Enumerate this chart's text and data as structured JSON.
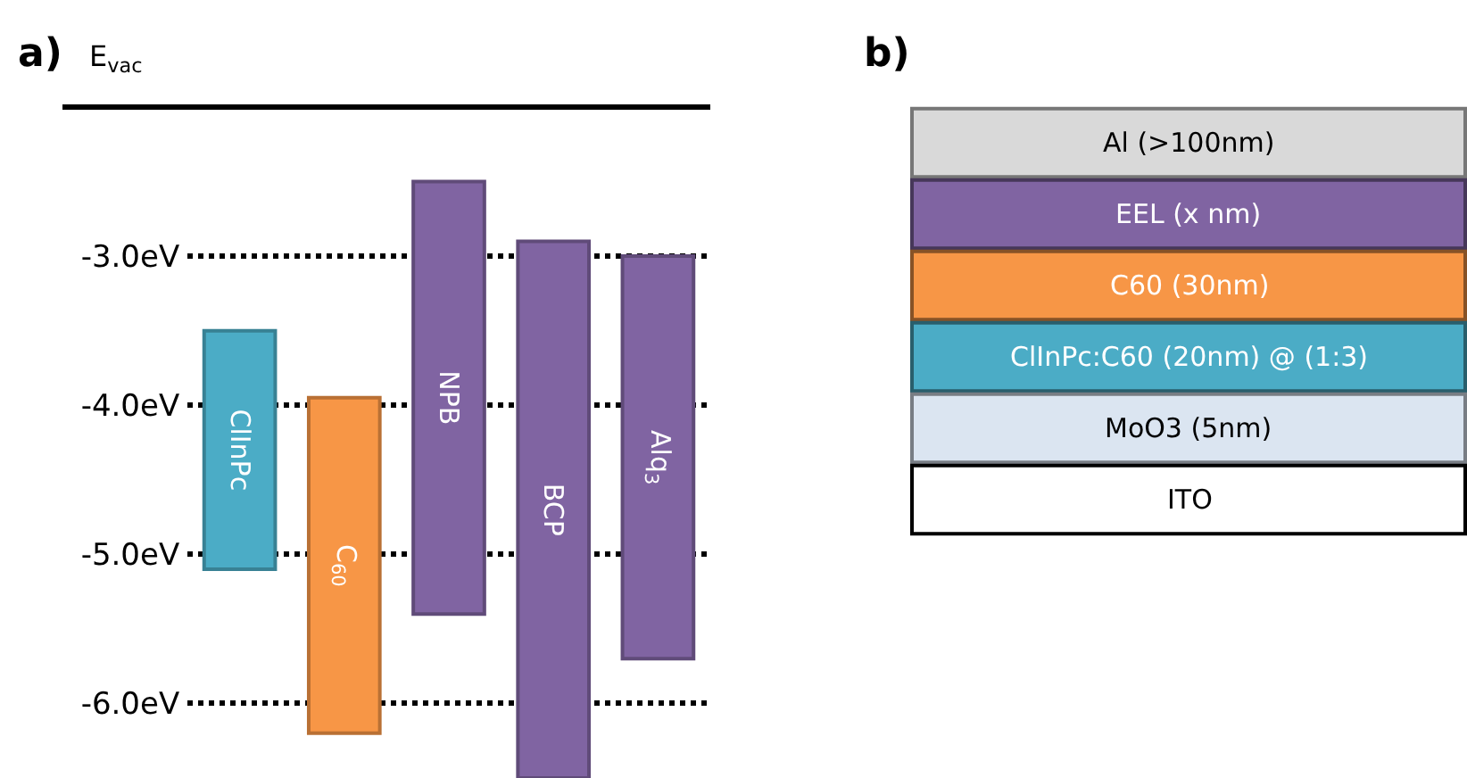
{
  "chart_data": [
    {
      "type": "bar",
      "title": "a)",
      "annotations": [
        "E$_{vac}$"
      ],
      "categories": [
        "ClInPc",
        "C$_{60}$",
        "NPB",
        "BCP",
        "Alq$_{3}$"
      ],
      "base": [
        -5.1,
        -6.2,
        -5.4,
        -6.5,
        -5.7
      ],
      "values": [
        1.6,
        2.25,
        2.9,
        3.6,
        2.7
      ],
      "colors": [
        "#4bacc6",
        "#f79646",
        "#8064a2",
        "#8064a2",
        "#8064a2"
      ],
      "ylim": [
        -6.5,
        -2.0
      ],
      "yticks": [
        {
          "value": -6.0,
          "label": "-6.0eV"
        },
        {
          "value": -5.0,
          "label": "-5.0eV"
        },
        {
          "value": -4.0,
          "label": "-4.0eV"
        },
        {
          "value": -3.0,
          "label": "-3.0eV"
        }
      ],
      "grid": "y",
      "tick_labels": "y"
    },
    {
      "type": "other",
      "title": "b)",
      "categories": [
        "Al (>100nm)",
        "EEL (x nm)",
        "C60 (30nm)",
        "ClInPc:C60 (20nm) @ (1:3)",
        "MoO3 (5nm)",
        "ITO"
      ],
      "colors": [
        "#d9d9d9",
        "#8064a2",
        "#f79646",
        "#4bacc6",
        "#dbe5f1",
        "#ffffff"
      ]
    }
  ]
}
